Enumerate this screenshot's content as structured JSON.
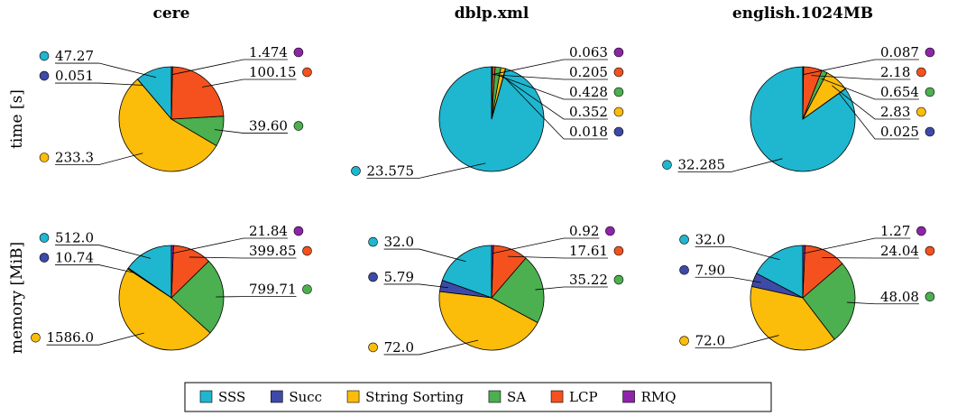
{
  "chart_data": [
    {
      "type": "pie",
      "title": "cere",
      "ylabel": "time [s]",
      "categories": [
        "SSS",
        "Succ",
        "String Sorting",
        "SA",
        "LCP",
        "RMQ"
      ],
      "colors": [
        "#1fb6cf",
        "#3e4aa8",
        "#fbbc0a",
        "#4caf50",
        "#f4511e",
        "#8e24aa"
      ],
      "values": [
        47.27,
        0.051,
        233.3,
        39.6,
        100.15,
        1.474
      ],
      "value_labels": [
        "47.27",
        "0.051",
        "233.3",
        "39.60",
        "100.15",
        "1.474"
      ]
    },
    {
      "type": "pie",
      "title": "dblp.xml",
      "categories": [
        "SSS",
        "Succ",
        "String Sorting",
        "SA",
        "LCP",
        "RMQ"
      ],
      "colors": [
        "#1fb6cf",
        "#3e4aa8",
        "#fbbc0a",
        "#4caf50",
        "#f4511e",
        "#8e24aa"
      ],
      "values": [
        23.575,
        0.018,
        0.352,
        0.428,
        0.205,
        0.063
      ]
    },
    {
      "type": "pie",
      "title": "english.1024MB",
      "categories": [
        "SSS",
        "Succ",
        "String Sorting",
        "SA",
        "LCP",
        "RMQ"
      ],
      "colors": [
        "#1fb6cf",
        "#3e4aa8",
        "#fbbc0a",
        "#4caf50",
        "#f4511e",
        "#8e24aa"
      ],
      "values": [
        32.285,
        0.025,
        2.83,
        0.654,
        2.18,
        0.087
      ]
    },
    {
      "type": "pie",
      "ylabel": "memory [MiB]",
      "categories": [
        "SSS",
        "Succ",
        "String Sorting",
        "SA",
        "LCP",
        "RMQ"
      ],
      "colors": [
        "#1fb6cf",
        "#3e4aa8",
        "#fbbc0a",
        "#4caf50",
        "#f4511e",
        "#8e24aa"
      ],
      "values": [
        512,
        10.74,
        1586,
        799.71,
        399.85,
        21.84
      ],
      "value_labels": [
        "512.0",
        "10.74",
        "1586.0",
        "799.71",
        "399.85",
        "21.84"
      ]
    },
    {
      "type": "pie",
      "categories": [
        "SSS",
        "Succ",
        "String Sorting",
        "SA",
        "LCP",
        "RMQ"
      ],
      "colors": [
        "#1fb6cf",
        "#3e4aa8",
        "#fbbc0a",
        "#4caf50",
        "#f4511e",
        "#8e24aa"
      ],
      "values": [
        32,
        5.79,
        72,
        35.22,
        17.61,
        0.92
      ],
      "value_labels": [
        "32.0",
        "5.79",
        "72.0",
        "35.22",
        "17.61",
        "0.92"
      ]
    },
    {
      "type": "pie",
      "categories": [
        "SSS",
        "Succ",
        "String Sorting",
        "SA",
        "LCP",
        "RMQ"
      ],
      "colors": [
        "#1fb6cf",
        "#3e4aa8",
        "#fbbc0a",
        "#4caf50",
        "#f4511e",
        "#8e24aa"
      ],
      "values": [
        32,
        7.9,
        72,
        48.08,
        24.04,
        1.27
      ],
      "value_labels": [
        "32.0",
        "7.90",
        "72.0",
        "48.08",
        "24.04",
        "1.27"
      ]
    }
  ]
}
